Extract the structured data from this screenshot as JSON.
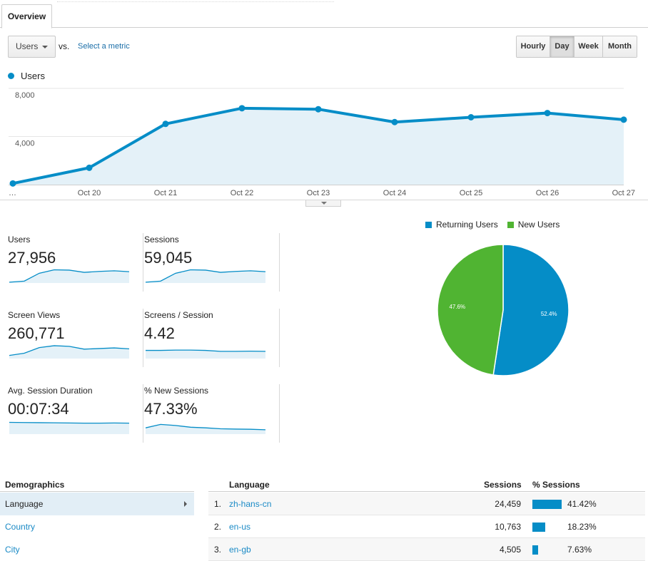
{
  "tabs": {
    "overview": "Overview"
  },
  "toolbar": {
    "metric_select": "Users",
    "vs_label": "vs.",
    "select_metric_link": "Select a metric",
    "ranges": [
      {
        "label": "Hourly",
        "active": false
      },
      {
        "label": "Day",
        "active": true
      },
      {
        "label": "Week",
        "active": false
      },
      {
        "label": "Month",
        "active": false
      }
    ]
  },
  "chart_data": {
    "type": "area",
    "legend": "Users",
    "series": [
      {
        "name": "Users",
        "values": [
          100,
          1400,
          5050,
          6350,
          6270,
          5200,
          5600,
          5950,
          5400
        ]
      }
    ],
    "x": [
      "…",
      "Oct 20",
      "Oct 21",
      "Oct 22",
      "Oct 23",
      "Oct 24",
      "Oct 25",
      "Oct 26",
      "Oct 27"
    ],
    "yticks": [
      "8,000",
      "4,000"
    ],
    "ytick_values": [
      8000,
      4000
    ],
    "ylim": [
      0,
      8000
    ],
    "color": "#058dc7",
    "fill_color": "#e4f1f8"
  },
  "scorecards": [
    {
      "label": "Users",
      "value": "27,956",
      "spark": [
        5,
        12,
        62,
        84,
        82,
        68,
        74,
        78,
        72
      ]
    },
    {
      "label": "Sessions",
      "value": "59,045",
      "spark": [
        5,
        12,
        62,
        84,
        82,
        68,
        74,
        78,
        72
      ]
    },
    {
      "label": "Screen Views",
      "value": "260,771",
      "spark": [
        20,
        34,
        70,
        82,
        78,
        60,
        64,
        68,
        62
      ]
    },
    {
      "label": "Screens / Session",
      "value": "4.42",
      "spark": [
        52,
        52,
        54,
        54,
        52,
        46,
        46,
        47,
        46
      ]
    },
    {
      "label": "Avg. Session Duration",
      "value": "00:07:34",
      "spark": [
        75,
        74,
        73,
        72,
        71,
        70,
        70,
        71,
        70
      ]
    },
    {
      "label": "% New Sessions",
      "value": "47.33%",
      "spark": [
        40,
        62,
        55,
        44,
        40,
        34,
        32,
        31,
        28
      ]
    }
  ],
  "pie": {
    "legend": [
      {
        "label": "Returning Users",
        "color": "#058dc7"
      },
      {
        "label": "New Users",
        "color": "#50b432"
      }
    ],
    "slices": [
      {
        "label": "52.4%",
        "value": 52.4,
        "color": "#058dc7"
      },
      {
        "label": "47.6%",
        "value": 47.6,
        "color": "#50b432"
      }
    ]
  },
  "demographics": {
    "title": "Demographics",
    "items": [
      {
        "label": "Language",
        "active": true
      },
      {
        "label": "Country",
        "active": false
      },
      {
        "label": "City",
        "active": false
      }
    ]
  },
  "table": {
    "headers": {
      "language": "Language",
      "sessions": "Sessions",
      "pct_sessions": "% Sessions"
    },
    "rows": [
      {
        "idx": "1.",
        "language": "zh-hans-cn",
        "sessions": "24,459",
        "pct": "41.42%",
        "share": 41.42
      },
      {
        "idx": "2.",
        "language": "en-us",
        "sessions": "10,763",
        "pct": "18.23%",
        "share": 18.23
      },
      {
        "idx": "3.",
        "language": "en-gb",
        "sessions": "4,505",
        "pct": "7.63%",
        "share": 7.63
      }
    ]
  }
}
